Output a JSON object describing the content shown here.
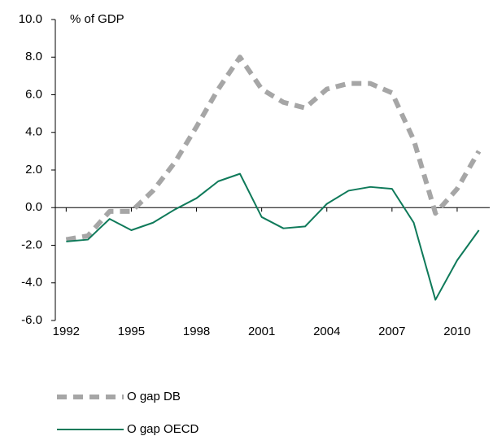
{
  "chart_data": {
    "type": "line",
    "y_label": "% of GDP",
    "x": [
      1992,
      1993,
      1994,
      1995,
      1996,
      1997,
      1998,
      1999,
      2000,
      2001,
      2002,
      2003,
      2004,
      2005,
      2006,
      2007,
      2008,
      2009,
      2010,
      2011
    ],
    "series": [
      {
        "name": "O gap DB",
        "color": "#a6a6a6",
        "style": "dashed",
        "values": [
          -1.7,
          -1.5,
          -0.2,
          -0.2,
          0.9,
          2.4,
          4.3,
          6.3,
          8.0,
          6.3,
          5.6,
          5.3,
          6.3,
          6.6,
          6.6,
          6.1,
          3.6,
          -0.3,
          1.0,
          3.0
        ]
      },
      {
        "name": "O gap OECD",
        "color": "#0f7a5a",
        "style": "solid",
        "values": [
          -1.8,
          -1.7,
          -0.6,
          -1.2,
          -0.8,
          -0.1,
          0.5,
          1.4,
          1.8,
          -0.5,
          -1.1,
          -1.0,
          0.2,
          0.9,
          1.1,
          1.0,
          -0.8,
          -4.9,
          -2.8,
          -1.2
        ]
      }
    ],
    "xlim": [
      1991.5,
      2011.5
    ],
    "xticks": [
      1992,
      1995,
      1998,
      2001,
      2004,
      2007,
      2010
    ],
    "ylim": [
      -6,
      10
    ],
    "yticks": [
      {
        "value": 10,
        "label": "10.0"
      },
      {
        "value": 8,
        "label": "8.0"
      },
      {
        "value": 6,
        "label": "6.0"
      },
      {
        "value": 4,
        "label": "4.0"
      },
      {
        "value": 2,
        "label": "2.0"
      },
      {
        "value": 0,
        "label": "0.0"
      },
      {
        "value": -2,
        "label": "-2.0"
      },
      {
        "value": -4,
        "label": "-4.0"
      },
      {
        "value": -6,
        "label": "-6.0"
      }
    ],
    "legend": "bottom-left"
  }
}
